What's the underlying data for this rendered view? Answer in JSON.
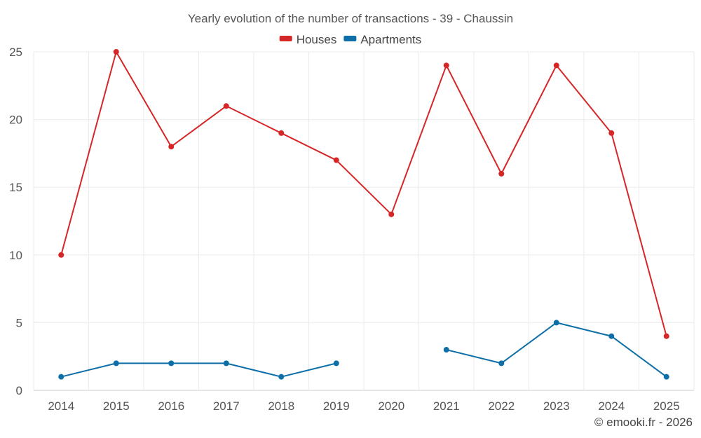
{
  "chart_data": {
    "type": "line",
    "title": "Yearly evolution of the number of transactions - 39 - Chaussin",
    "categories": [
      "2014",
      "2015",
      "2016",
      "2017",
      "2018",
      "2019",
      "2020",
      "2021",
      "2022",
      "2023",
      "2024",
      "2025"
    ],
    "series": [
      {
        "name": "Houses",
        "color": "#d62728",
        "values": [
          10,
          25,
          18,
          21,
          19,
          17,
          13,
          24,
          16,
          24,
          19,
          4
        ]
      },
      {
        "name": "Apartments",
        "color": "#0e6ea8",
        "values": [
          1,
          2,
          2,
          2,
          1,
          2,
          null,
          3,
          2,
          5,
          4,
          1
        ]
      }
    ],
    "yticks": [
      0,
      5,
      10,
      15,
      20,
      25
    ],
    "ylim": [
      0,
      25
    ],
    "xlabel": "",
    "ylabel": "",
    "grid": true,
    "legend": "top-center"
  },
  "footer": "© emooki.fr - 2026"
}
